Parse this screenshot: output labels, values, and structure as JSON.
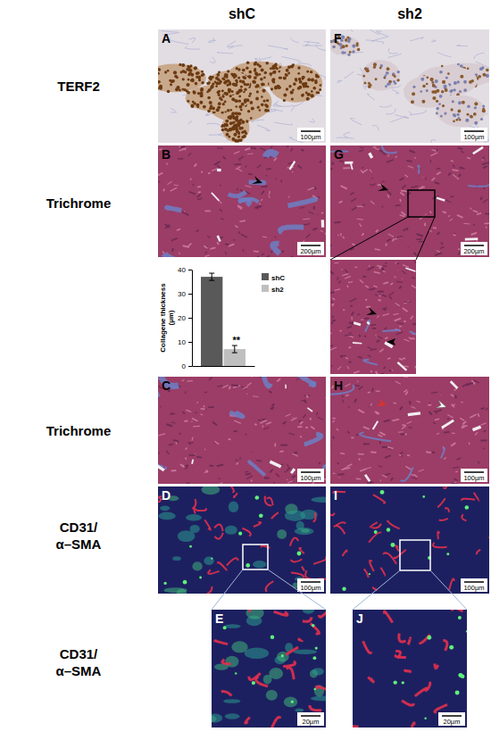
{
  "figure": {
    "columns": [
      "shC",
      "sh2"
    ],
    "rows": [
      [
        "TERF2"
      ],
      [
        "Trichrome"
      ],
      [
        "Trichrome"
      ],
      [
        "CD31/",
        "α–SMA"
      ],
      [
        "CD31/",
        "α–SMA"
      ]
    ],
    "panels": [
      {
        "letter": "A",
        "scale_bar": "100µm"
      },
      {
        "letter": "B",
        "scale_bar": "200µm"
      },
      {
        "letter": "C",
        "scale_bar": "100µm"
      },
      {
        "letter": "D",
        "scale_bar": "100µm"
      },
      {
        "letter": "E",
        "scale_bar": "20µm"
      },
      {
        "letter": "F",
        "scale_bar": "100µm"
      },
      {
        "letter": "G",
        "scale_bar": "200µm"
      },
      {
        "letter": "H",
        "scale_bar": "100µm"
      },
      {
        "letter": "I",
        "scale_bar": "100µm"
      },
      {
        "letter": "J",
        "scale_bar": "20µm"
      }
    ]
  },
  "chart_data": {
    "type": "bar",
    "y_label": [
      "Collagene thickness",
      "(µm)"
    ],
    "categories": [
      null
    ],
    "series": [
      {
        "name": "shC",
        "color": "#595959",
        "values": [
          37
        ],
        "errors": [
          1.5
        ]
      },
      {
        "name": "sh2",
        "color": "#bfbfbf",
        "values": [
          7
        ],
        "errors": [
          1.5
        ]
      }
    ],
    "annotations": [
      {
        "text": "**",
        "series": 1
      }
    ],
    "ylim": [
      0,
      40
    ],
    "yticks": [
      0,
      10,
      20,
      30,
      40
    ],
    "legend": "top-right",
    "tick_labels": "y",
    "grid": false
  }
}
